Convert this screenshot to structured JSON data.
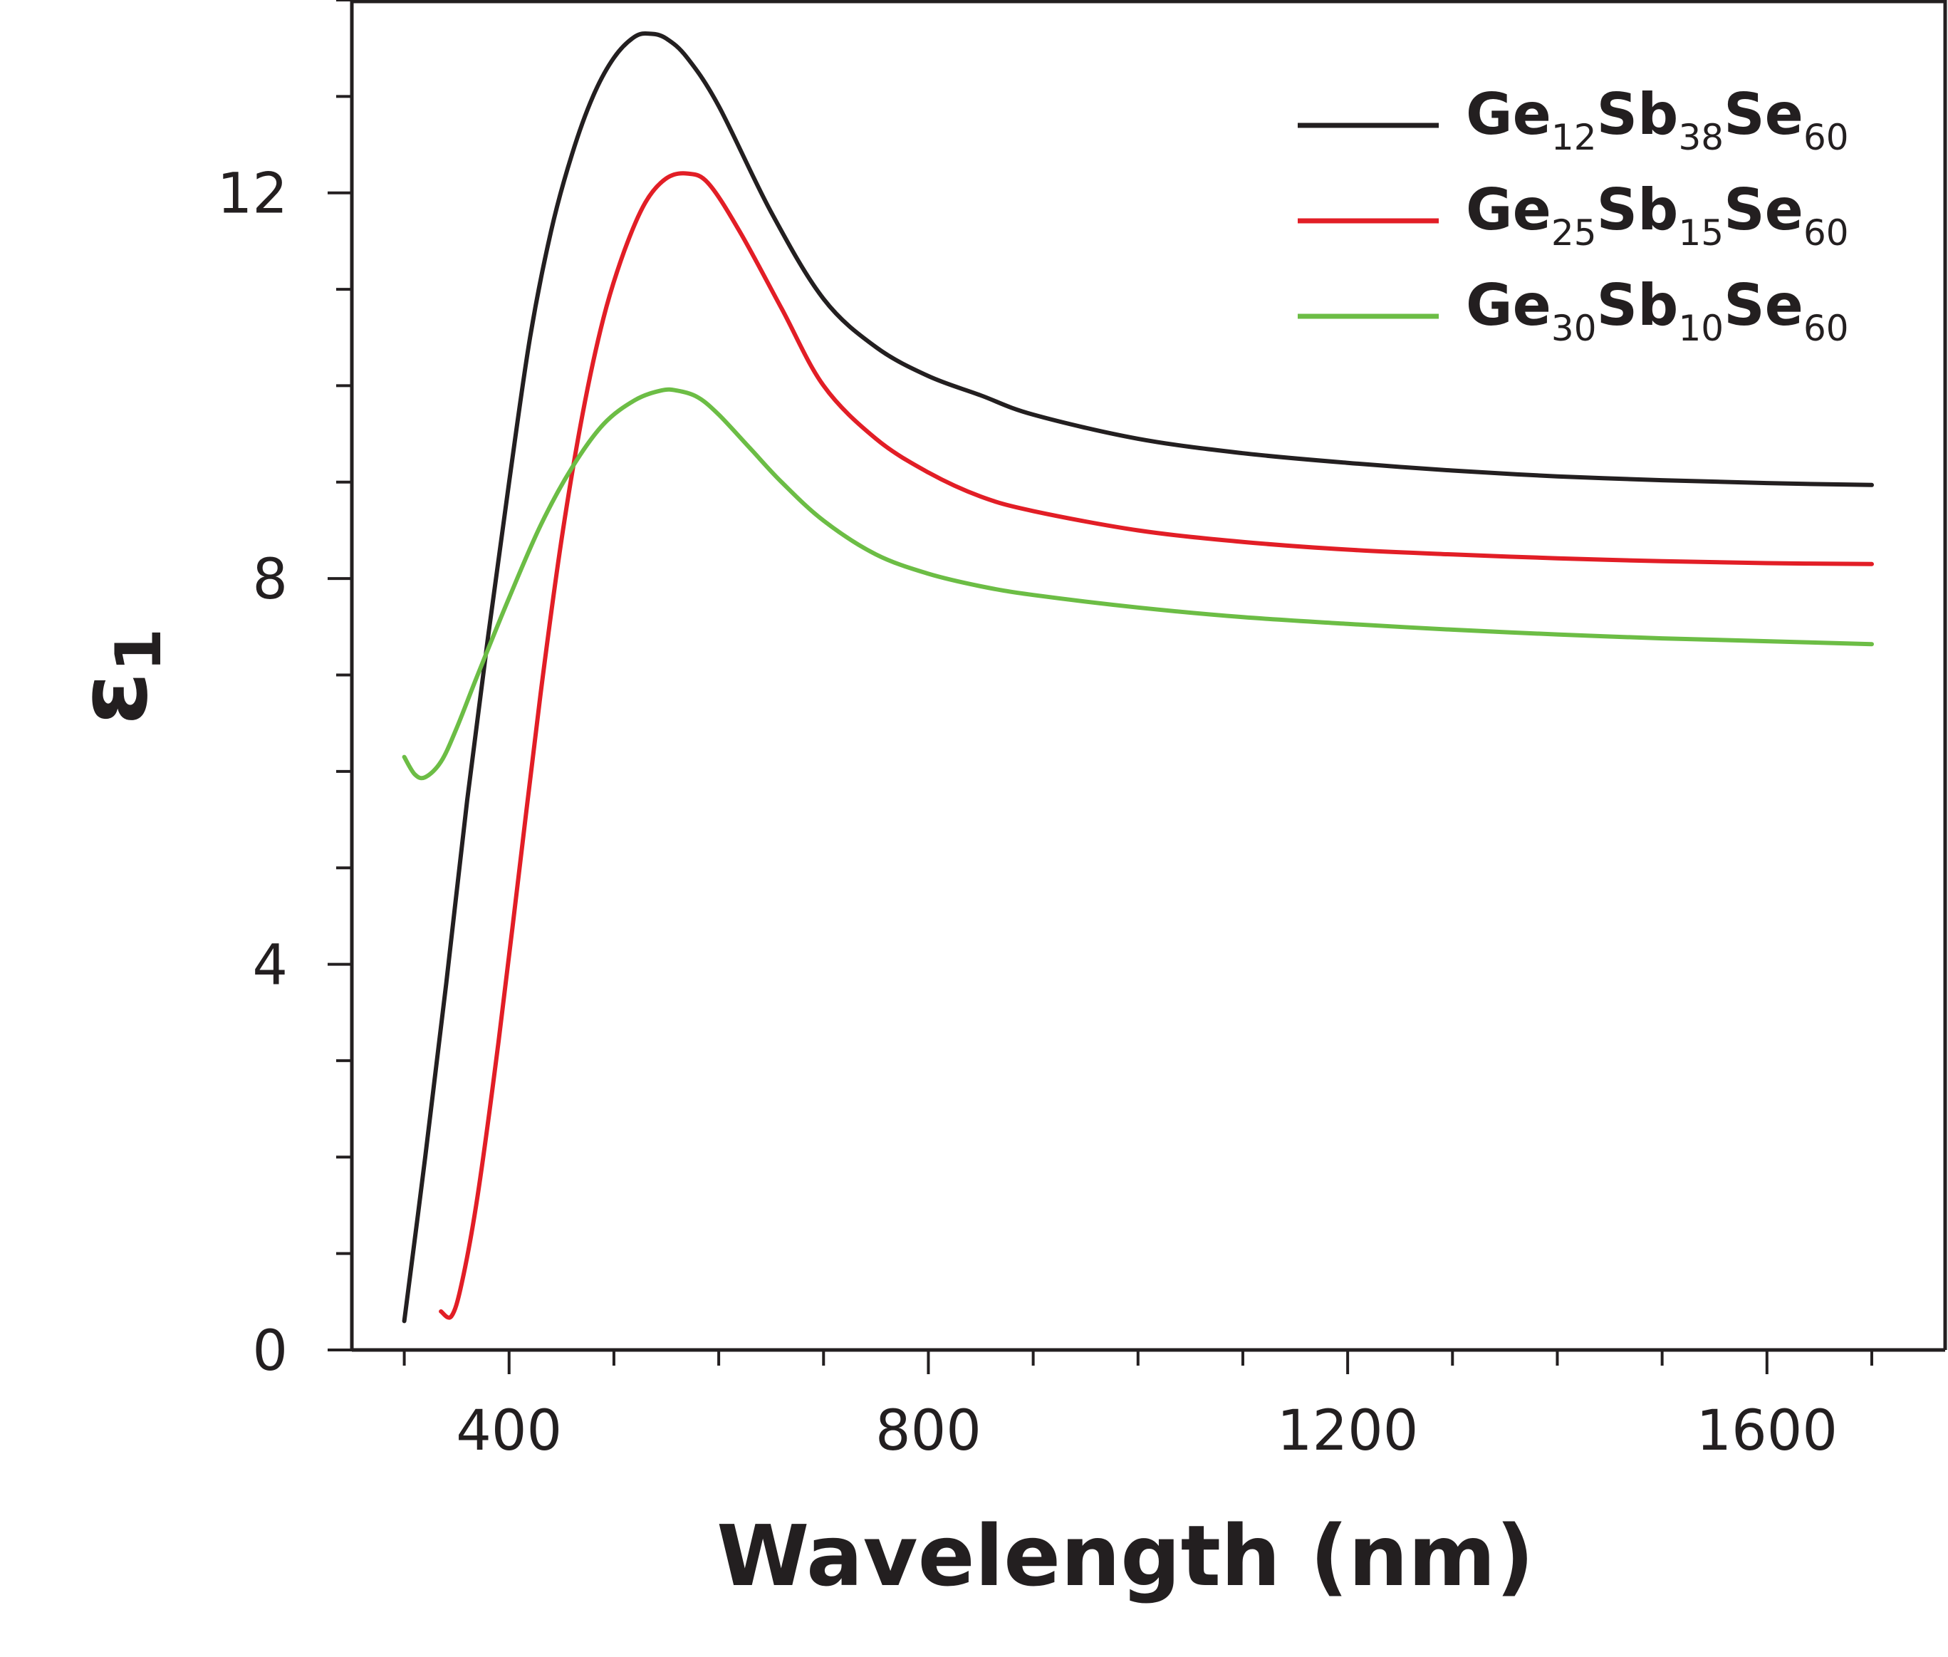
{
  "chart_data": {
    "type": "line",
    "title": "",
    "xlabel": "Wavelength (nm)",
    "ylabel": "ε",
    "ylabel_sub": "1",
    "xlim": [
      250,
      1770
    ],
    "ylim": [
      0,
      14
    ],
    "x_major_ticks": [
      400,
      800,
      1200,
      1600
    ],
    "x_minor_step": 100,
    "y_major_ticks": [
      0,
      4,
      8,
      12
    ],
    "y_minor_step": 1,
    "grid": false,
    "legend_position": "top-right",
    "series": [
      {
        "name": "Ge12Sb38Se60",
        "legend": [
          [
            "Ge",
            ""
          ],
          [
            "12",
            "sub"
          ],
          [
            "Sb",
            ""
          ],
          [
            "38",
            "sub"
          ],
          [
            "Se",
            ""
          ],
          [
            "60",
            "sub"
          ]
        ],
        "color": "#231f20",
        "x": [
          300,
          320,
          340,
          360,
          380,
          400,
          420,
          440,
          460,
          480,
          500,
          520,
          535,
          550,
          570,
          600,
          650,
          700,
          750,
          800,
          850,
          900,
          1000,
          1100,
          1200,
          1300,
          1400,
          1500,
          1600,
          1700
        ],
        "y": [
          0.3,
          2.0,
          3.8,
          5.7,
          7.4,
          9.0,
          10.5,
          11.6,
          12.4,
          13.0,
          13.4,
          13.62,
          13.65,
          13.6,
          13.4,
          12.9,
          11.8,
          10.9,
          10.4,
          10.1,
          9.9,
          9.7,
          9.45,
          9.3,
          9.2,
          9.12,
          9.06,
          9.02,
          8.99,
          8.97
        ]
      },
      {
        "name": "Ge25Sb15Se60",
        "legend": [
          [
            "Ge",
            ""
          ],
          [
            "25",
            "sub"
          ],
          [
            "Sb",
            ""
          ],
          [
            "15",
            "sub"
          ],
          [
            "Se",
            ""
          ],
          [
            "60",
            "sub"
          ]
        ],
        "color": "#e21e26",
        "x": [
          335,
          345,
          355,
          370,
          390,
          410,
          430,
          450,
          470,
          490,
          510,
          530,
          550,
          570,
          590,
          620,
          660,
          700,
          750,
          800,
          850,
          900,
          1000,
          1100,
          1200,
          1300,
          1400,
          1500,
          1600,
          1700
        ],
        "y": [
          0.4,
          0.35,
          0.7,
          1.6,
          3.2,
          5.0,
          6.8,
          8.4,
          9.7,
          10.7,
          11.4,
          11.9,
          12.15,
          12.2,
          12.1,
          11.6,
          10.8,
          10.0,
          9.45,
          9.1,
          8.85,
          8.7,
          8.5,
          8.38,
          8.3,
          8.25,
          8.21,
          8.18,
          8.16,
          8.15
        ]
      },
      {
        "name": "Ge30Sb10Se60",
        "legend": [
          [
            "Ge",
            ""
          ],
          [
            "30",
            "sub"
          ],
          [
            "Sb",
            ""
          ],
          [
            "10",
            "sub"
          ],
          [
            "Se",
            ""
          ],
          [
            "60",
            "sub"
          ]
        ],
        "color": "#6cbd45",
        "x": [
          300,
          310,
          320,
          335,
          350,
          370,
          400,
          430,
          460,
          490,
          520,
          545,
          560,
          580,
          600,
          630,
          660,
          700,
          750,
          800,
          850,
          900,
          1000,
          1100,
          1200,
          1300,
          1400,
          1500,
          1600,
          1700
        ],
        "y": [
          6.15,
          5.97,
          5.94,
          6.1,
          6.45,
          7.0,
          7.8,
          8.55,
          9.15,
          9.6,
          9.85,
          9.95,
          9.95,
          9.88,
          9.7,
          9.35,
          9.0,
          8.6,
          8.25,
          8.05,
          7.92,
          7.83,
          7.7,
          7.6,
          7.53,
          7.47,
          7.42,
          7.38,
          7.35,
          7.32
        ]
      }
    ]
  }
}
